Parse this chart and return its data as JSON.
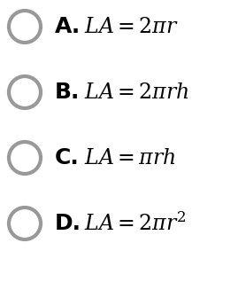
{
  "background_color": "#ffffff",
  "options": [
    {
      "label": "A.",
      "formula": "$LA = 2\\pi r$"
    },
    {
      "label": "B.",
      "formula": "$LA = 2\\pi rh$"
    },
    {
      "label": "C.",
      "formula": "$LA = \\pi rh$"
    },
    {
      "label": "D.",
      "formula": "$LA = 2\\pi r^2$"
    }
  ],
  "circle_color": "#999999",
  "circle_lw": 3.0,
  "label_fontsize": 18,
  "formula_fontsize": 17,
  "figwidth": 2.78,
  "figheight": 3.18,
  "dpi": 100
}
